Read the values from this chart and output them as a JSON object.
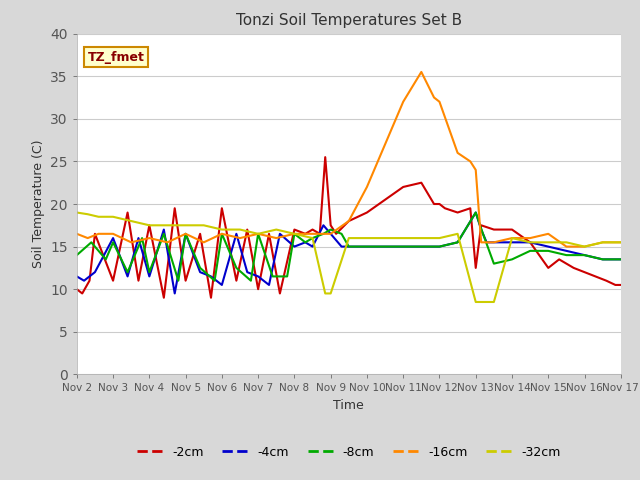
{
  "title": "Tonzi Soil Temperatures Set B",
  "xlabel": "Time",
  "ylabel": "Soil Temperature (C)",
  "ylim": [
    0,
    40
  ],
  "yticks": [
    0,
    5,
    10,
    15,
    20,
    25,
    30,
    35,
    40
  ],
  "outer_bg": "#d8d8d8",
  "plot_bg": "#ffffff",
  "legend_labels": [
    "-2cm",
    "-4cm",
    "-8cm",
    "-16cm",
    "-32cm"
  ],
  "legend_colors": [
    "#cc0000",
    "#0000cc",
    "#00aa00",
    "#ff8800",
    "#cccc00"
  ],
  "annotation_text": "TZ_fmet",
  "annotation_bg": "#ffffcc",
  "annotation_border": "#cc8800",
  "x_ticks": [
    "Nov 2",
    "Nov 3",
    "Nov 4",
    "Nov 5",
    "Nov 6",
    "Nov 7",
    "Nov 8",
    "Nov 9",
    "Nov 10",
    "Nov 11",
    "Nov 12",
    "Nov 13",
    "Nov 14",
    "Nov 15",
    "Nov 16",
    "Nov 17"
  ],
  "series": {
    "-2cm": {
      "color": "#cc0000",
      "x": [
        0.0,
        0.15,
        0.35,
        0.5,
        1.0,
        1.4,
        1.7,
        2.0,
        2.4,
        2.7,
        3.0,
        3.4,
        3.7,
        4.0,
        4.4,
        4.7,
        5.0,
        5.3,
        5.6,
        6.0,
        6.3,
        6.5,
        6.7,
        6.85,
        7.0,
        7.15,
        7.5,
        8.0,
        8.5,
        9.0,
        9.5,
        9.85,
        10.0,
        10.15,
        10.5,
        10.85,
        11.0,
        11.15,
        11.5,
        12.0,
        12.5,
        13.0,
        13.3,
        13.5,
        13.7,
        14.0,
        14.3,
        14.6,
        14.85,
        15.0
      ],
      "y": [
        10.0,
        9.5,
        11.0,
        16.5,
        11.0,
        19.0,
        11.0,
        17.5,
        9.0,
        19.5,
        11.0,
        16.5,
        9.0,
        19.5,
        11.0,
        17.0,
        10.0,
        16.5,
        9.5,
        17.0,
        16.5,
        17.0,
        16.5,
        25.5,
        17.5,
        16.5,
        18.0,
        19.0,
        20.5,
        22.0,
        22.5,
        20.0,
        20.0,
        19.5,
        19.0,
        19.5,
        12.5,
        17.5,
        17.0,
        17.0,
        15.5,
        12.5,
        13.5,
        13.0,
        12.5,
        12.0,
        11.5,
        11.0,
        10.5,
        10.5
      ]
    },
    "-4cm": {
      "color": "#0000cc",
      "x": [
        0.0,
        0.2,
        0.5,
        1.0,
        1.4,
        1.7,
        2.0,
        2.4,
        2.7,
        3.0,
        3.4,
        3.7,
        4.0,
        4.4,
        4.7,
        5.0,
        5.3,
        5.6,
        6.0,
        6.3,
        6.5,
        6.8,
        7.0,
        7.3,
        7.5,
        8.0,
        9.0,
        9.5,
        10.0,
        10.5,
        11.0,
        11.15,
        11.3,
        11.5,
        12.0,
        12.5,
        13.0,
        13.5,
        14.0,
        14.5,
        15.0
      ],
      "y": [
        11.5,
        11.0,
        12.0,
        16.0,
        11.5,
        16.0,
        11.5,
        17.0,
        9.5,
        16.5,
        12.0,
        11.5,
        10.5,
        16.5,
        12.0,
        11.5,
        10.5,
        16.5,
        15.0,
        15.5,
        15.0,
        17.5,
        16.5,
        15.0,
        15.0,
        15.0,
        15.0,
        15.0,
        15.0,
        15.5,
        19.0,
        17.0,
        15.5,
        15.5,
        15.5,
        15.5,
        15.0,
        14.5,
        14.0,
        13.5,
        13.5
      ]
    },
    "-8cm": {
      "color": "#00aa00",
      "x": [
        0.0,
        0.4,
        0.8,
        1.0,
        1.4,
        1.8,
        2.0,
        2.4,
        2.8,
        3.0,
        3.4,
        3.8,
        4.0,
        4.4,
        4.8,
        5.0,
        5.4,
        5.8,
        6.0,
        6.3,
        6.5,
        6.8,
        7.0,
        7.3,
        7.5,
        8.0,
        9.0,
        9.5,
        10.0,
        10.5,
        11.0,
        11.2,
        11.5,
        12.0,
        12.5,
        13.0,
        13.5,
        14.0,
        14.5,
        15.0
      ],
      "y": [
        14.0,
        15.5,
        13.5,
        15.5,
        12.0,
        16.0,
        12.0,
        16.5,
        11.0,
        16.5,
        12.5,
        11.0,
        16.5,
        12.5,
        11.0,
        16.5,
        11.5,
        11.5,
        16.5,
        15.5,
        16.0,
        16.5,
        17.0,
        16.5,
        15.0,
        15.0,
        15.0,
        15.0,
        15.0,
        15.5,
        19.0,
        16.5,
        13.0,
        13.5,
        14.5,
        14.5,
        14.0,
        14.0,
        13.5,
        13.5
      ]
    },
    "-16cm": {
      "color": "#ff8800",
      "x": [
        0.0,
        0.3,
        0.6,
        1.0,
        1.5,
        2.0,
        2.5,
        3.0,
        3.5,
        4.0,
        4.5,
        5.0,
        5.5,
        6.0,
        6.5,
        7.0,
        7.5,
        8.0,
        8.5,
        9.0,
        9.5,
        9.85,
        10.0,
        10.5,
        10.85,
        11.0,
        11.15,
        11.5,
        12.0,
        12.5,
        13.0,
        13.5,
        14.0,
        14.5,
        15.0
      ],
      "y": [
        16.5,
        16.0,
        16.5,
        16.5,
        15.5,
        16.0,
        15.5,
        16.5,
        15.5,
        16.5,
        16.0,
        16.5,
        16.0,
        16.5,
        16.5,
        16.5,
        18.0,
        22.0,
        27.0,
        32.0,
        35.5,
        32.5,
        32.0,
        26.0,
        25.0,
        24.0,
        15.5,
        15.5,
        16.0,
        16.0,
        16.5,
        15.0,
        15.0,
        15.5,
        15.5
      ]
    },
    "-32cm": {
      "color": "#cccc00",
      "x": [
        0.0,
        0.3,
        0.6,
        1.0,
        1.5,
        2.0,
        2.5,
        3.0,
        3.5,
        4.0,
        4.5,
        5.0,
        5.5,
        6.0,
        6.5,
        6.85,
        7.0,
        7.5,
        9.5,
        10.0,
        10.5,
        11.0,
        11.15,
        11.3,
        11.5,
        12.0,
        12.5,
        13.0,
        13.5,
        14.0,
        14.5,
        15.0
      ],
      "y": [
        19.0,
        18.8,
        18.5,
        18.5,
        18.0,
        17.5,
        17.5,
        17.5,
        17.5,
        17.0,
        17.0,
        16.5,
        17.0,
        16.5,
        16.0,
        9.5,
        9.5,
        16.0,
        16.0,
        16.0,
        16.5,
        8.5,
        8.5,
        8.5,
        8.5,
        16.0,
        15.5,
        15.5,
        15.5,
        15.0,
        15.5,
        15.5
      ]
    }
  }
}
